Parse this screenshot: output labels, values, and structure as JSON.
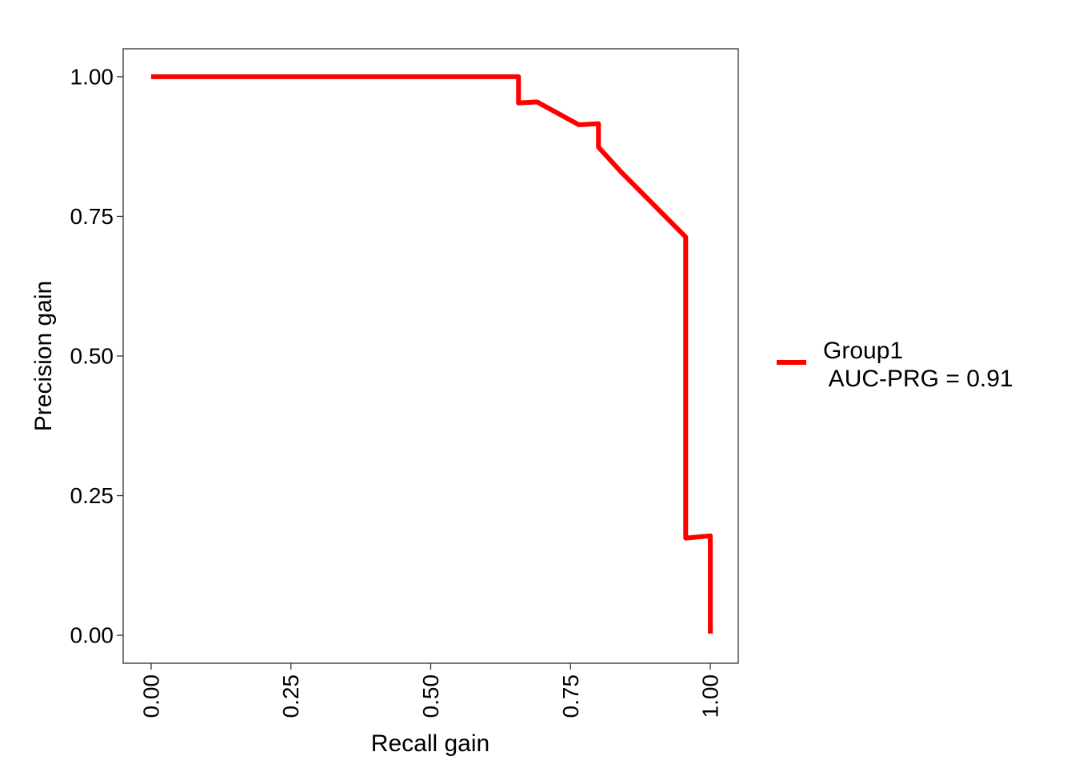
{
  "chart_data": {
    "type": "line",
    "title": "",
    "xlabel": "Recall gain",
    "ylabel": "Precision gain",
    "xlim": [
      -0.05,
      1.05
    ],
    "ylim": [
      -0.05,
      1.05
    ],
    "x_ticks": [
      0.0,
      0.25,
      0.5,
      0.75,
      1.0
    ],
    "x_tick_labels": [
      "0.00",
      "0.25",
      "0.50",
      "0.75",
      "1.00"
    ],
    "y_ticks": [
      0.0,
      0.25,
      0.5,
      0.75,
      1.0
    ],
    "y_tick_labels": [
      "0.00",
      "0.25",
      "0.50",
      "0.75",
      "1.00"
    ],
    "grid": false,
    "legend_position": "right",
    "series": [
      {
        "name_lines": [
          "Group1",
          " AUC-PRG = 0.91"
        ],
        "color": "#ff0000",
        "x": [
          0.0,
          0.657,
          0.657,
          0.69,
          0.765,
          0.8,
          0.8,
          0.84,
          0.956,
          0.956,
          1.0,
          1.0
        ],
        "y": [
          1.0,
          1.0,
          0.953,
          0.955,
          0.914,
          0.916,
          0.874,
          0.83,
          0.713,
          0.174,
          0.178,
          0.003
        ]
      }
    ]
  }
}
